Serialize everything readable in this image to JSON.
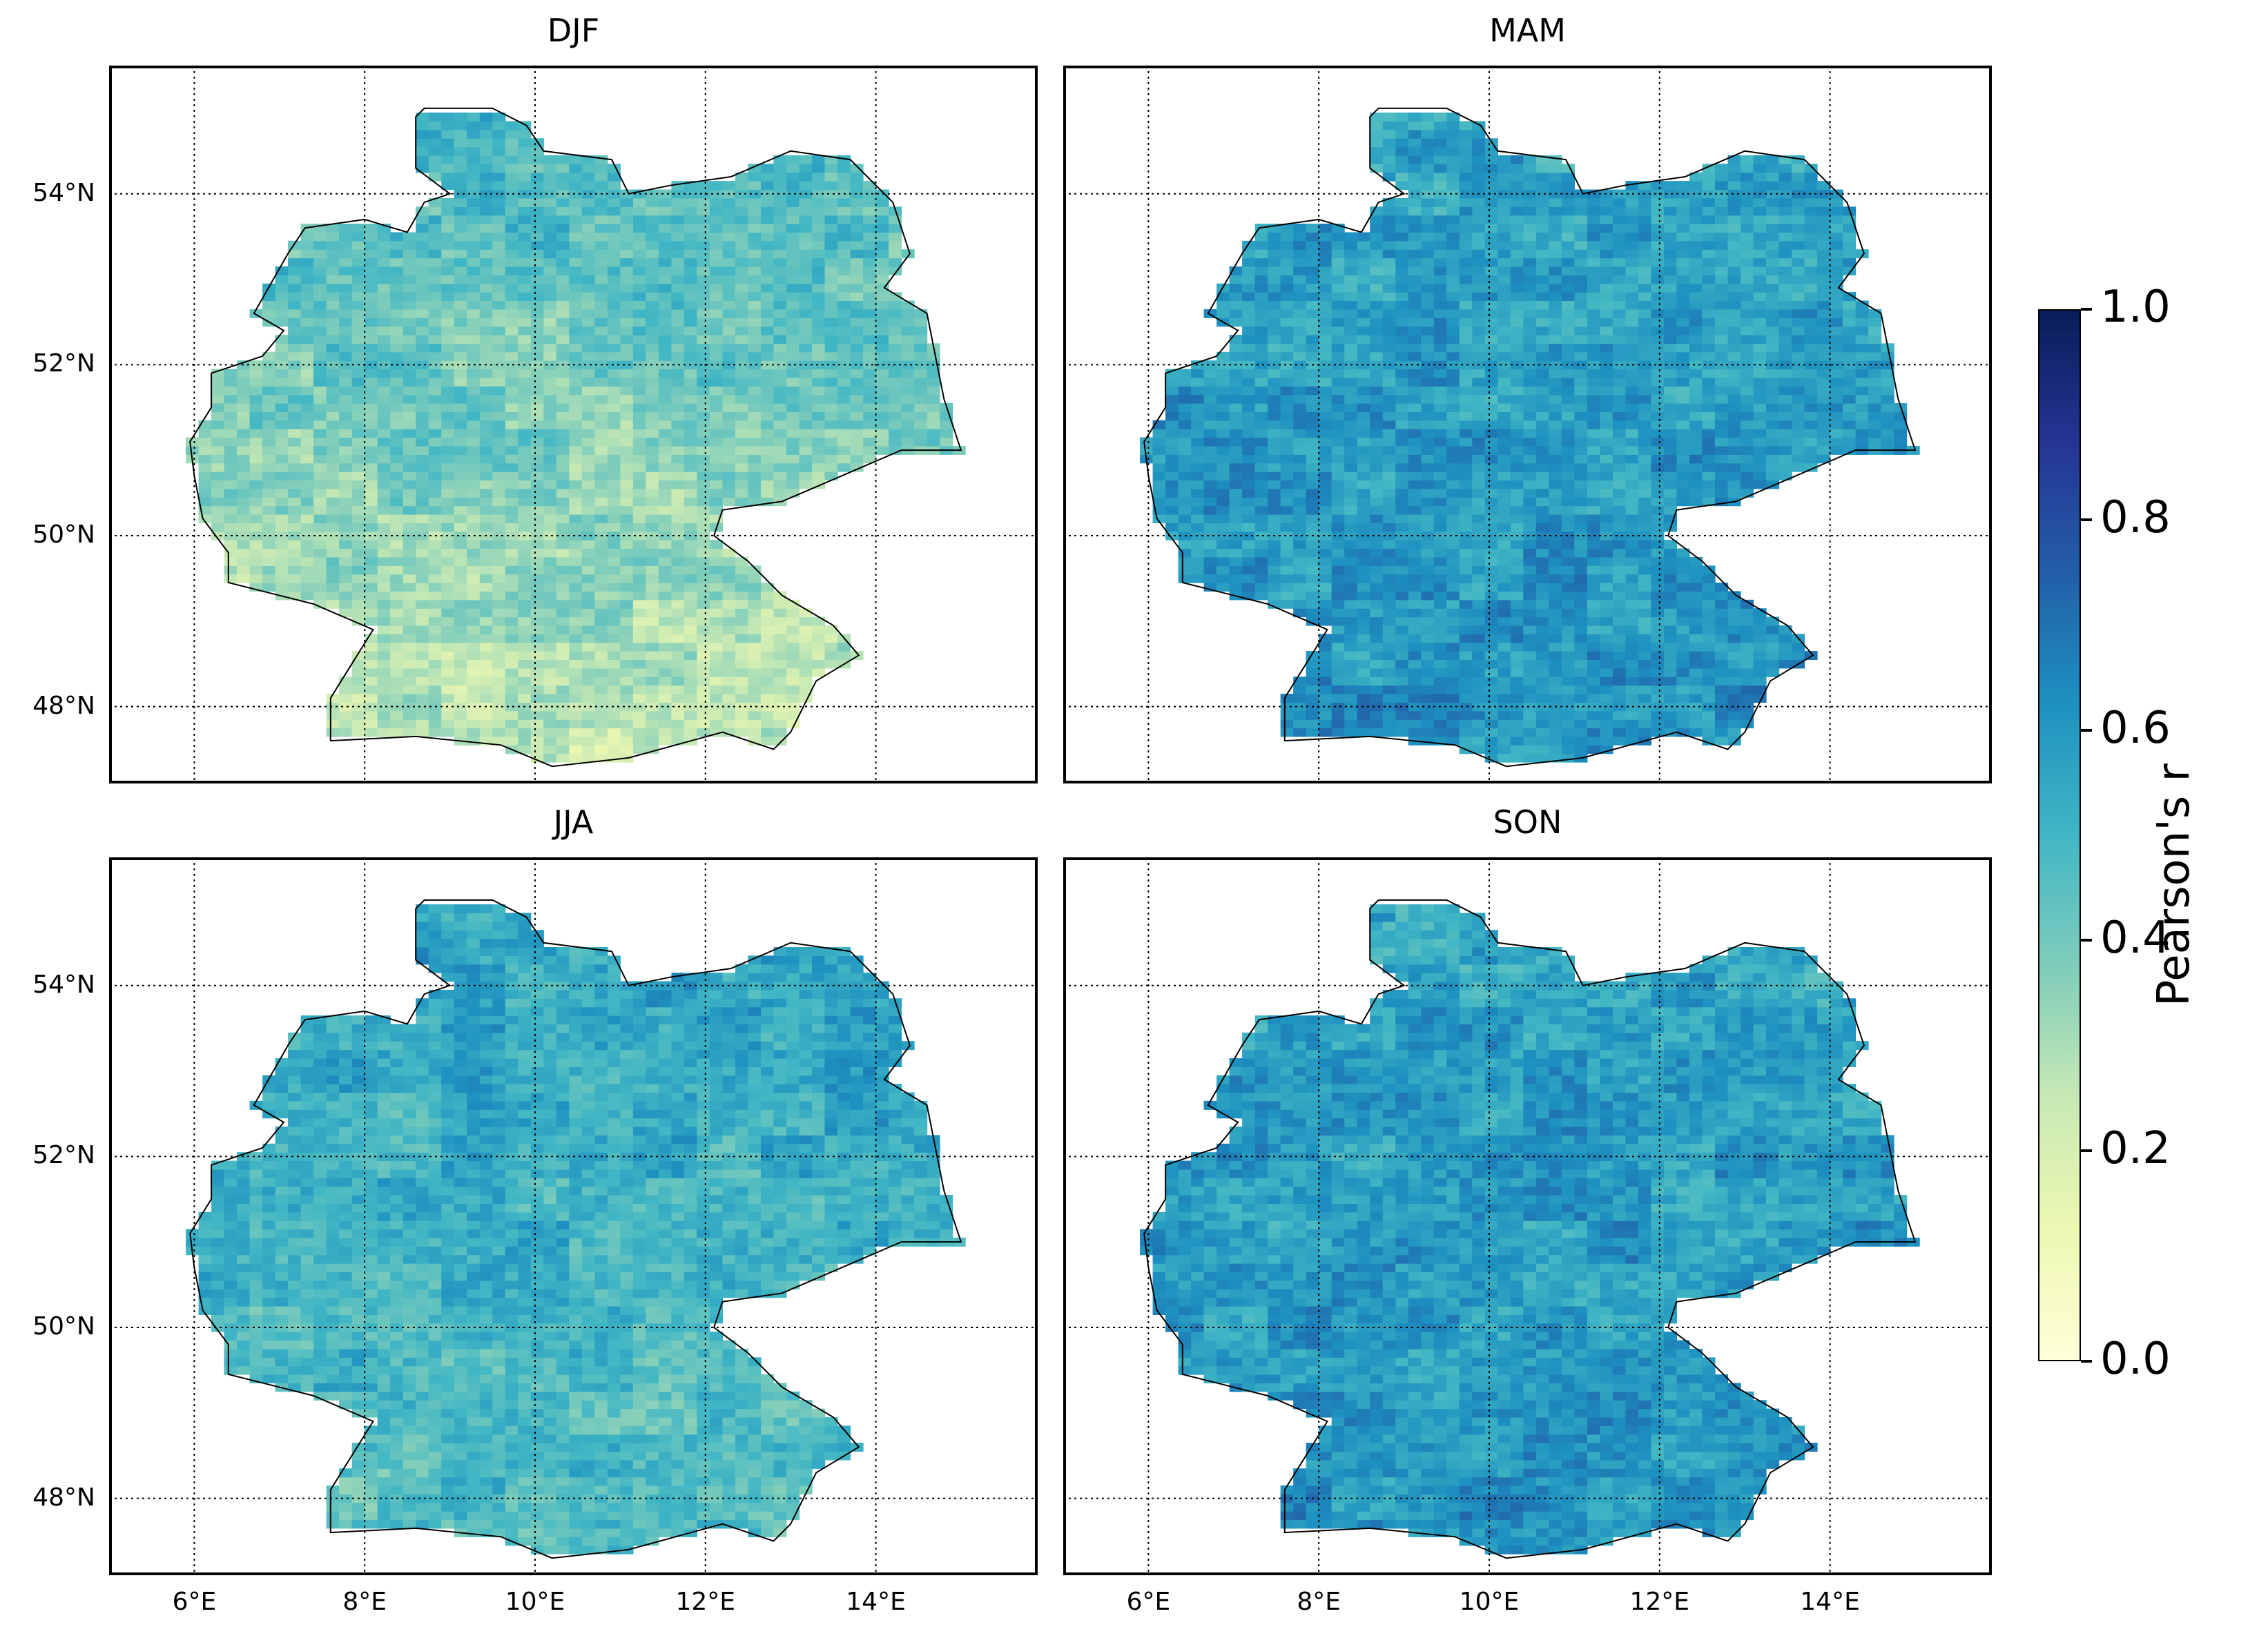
{
  "chart_data": {
    "type": "heatmap",
    "panels": [
      {
        "title": "DJF",
        "mean_r": 0.4,
        "north_r": 0.5,
        "south_r": 0.25
      },
      {
        "title": "MAM",
        "mean_r": 0.58,
        "north_r": 0.55,
        "south_r": 0.62
      },
      {
        "title": "JJA",
        "mean_r": 0.55,
        "north_r": 0.57,
        "south_r": 0.45
      },
      {
        "title": "SON",
        "mean_r": 0.58,
        "north_r": 0.55,
        "south_r": 0.62
      }
    ],
    "lat_ticks": [
      "48°N",
      "50°N",
      "52°N",
      "54°N"
    ],
    "lon_ticks": [
      "6°E",
      "8°E",
      "10°E",
      "12°E",
      "14°E"
    ],
    "lat_values": [
      48,
      50,
      52,
      54
    ],
    "lon_values": [
      6,
      8,
      10,
      12,
      14
    ],
    "xlim": [
      5,
      15.9
    ],
    "ylim": [
      47.1,
      55.5
    ],
    "colorbar": {
      "label": "Pearson's r",
      "range": [
        0.0,
        1.0
      ],
      "ticks": [
        "0.0",
        "0.2",
        "0.4",
        "0.6",
        "0.8",
        "1.0"
      ],
      "tick_values": [
        0.0,
        0.2,
        0.4,
        0.6,
        0.8,
        1.0
      ],
      "colormap": "YlGnBu",
      "colors": [
        "#ffffd9",
        "#edf8b1",
        "#c7e9b4",
        "#7fcdbb",
        "#41b6c4",
        "#1d91c0",
        "#225ea8",
        "#253494",
        "#081d58"
      ]
    }
  }
}
